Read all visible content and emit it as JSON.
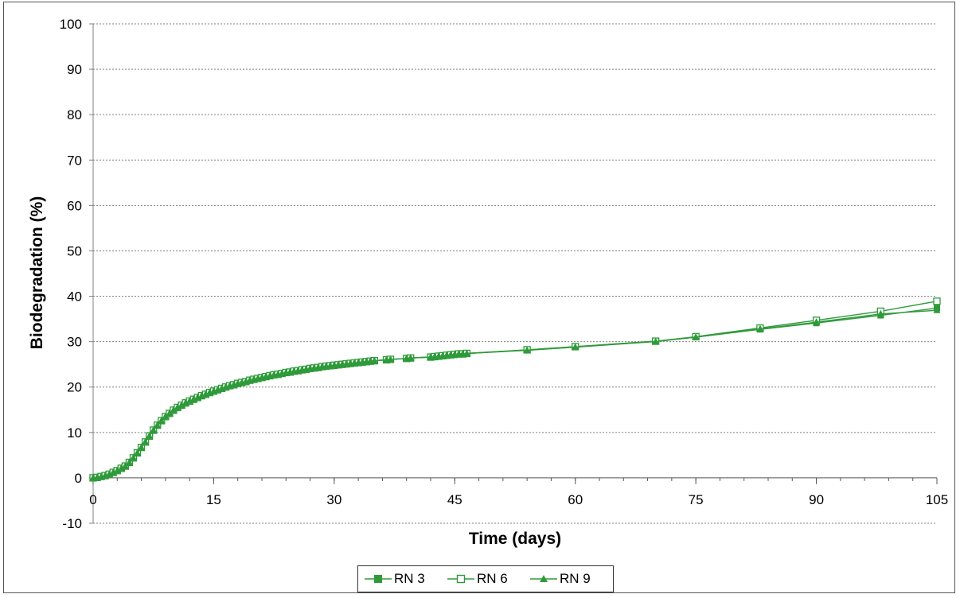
{
  "chart_data": {
    "type": "line",
    "xlabel": "Time (days)",
    "ylabel": "Biodegradation  (%)",
    "xlim": [
      0,
      105
    ],
    "ylim": [
      -10,
      100
    ],
    "x_ticks": [
      0,
      15,
      30,
      45,
      60,
      75,
      90,
      105
    ],
    "y_ticks": [
      -10,
      0,
      10,
      20,
      30,
      40,
      50,
      60,
      70,
      80,
      90,
      100
    ],
    "grid": "horizontal dashed",
    "legend_position": "bottom",
    "colors": {
      "series": "#2e9a3a",
      "grid": "#808080",
      "frame": "#555555"
    },
    "x": [
      0,
      0.5,
      1,
      1.5,
      2,
      2.5,
      3,
      3.5,
      4,
      4.5,
      5,
      5.5,
      6,
      6.5,
      7,
      7.5,
      8,
      8.5,
      9,
      9.5,
      10,
      10.5,
      11,
      11.5,
      12,
      12.5,
      13,
      13.5,
      14,
      14.5,
      15,
      15.5,
      16,
      16.5,
      17,
      17.5,
      18,
      18.5,
      19,
      19.5,
      20,
      20.5,
      21,
      21.5,
      22,
      22.5,
      23,
      23.5,
      24,
      24.5,
      25,
      25.5,
      26,
      26.5,
      27,
      27.5,
      28,
      28.5,
      29,
      29.5,
      30,
      30.5,
      31,
      31.5,
      32,
      32.5,
      33,
      33.5,
      34,
      34.5,
      35,
      36.5,
      37,
      39,
      39.5,
      42,
      42.5,
      43,
      43.5,
      44,
      44.5,
      45,
      45.5,
      46,
      46.5,
      54,
      60,
      70,
      75,
      83,
      90,
      98,
      105
    ],
    "series": [
      {
        "name": "RN 3",
        "marker": "filled-square",
        "values": [
          0,
          0.1,
          0.3,
          0.5,
          0.8,
          1.2,
          1.6,
          2.1,
          2.6,
          3.4,
          4.4,
          5.5,
          6.7,
          7.9,
          9.2,
          10.5,
          11.6,
          12.6,
          13.5,
          14.2,
          14.9,
          15.5,
          16,
          16.5,
          16.9,
          17.3,
          17.7,
          18.1,
          18.4,
          18.8,
          19.1,
          19.4,
          19.7,
          20,
          20.3,
          20.5,
          20.8,
          21,
          21.2,
          21.5,
          21.7,
          21.9,
          22.1,
          22.3,
          22.5,
          22.7,
          22.8,
          23,
          23.2,
          23.3,
          23.5,
          23.6,
          23.8,
          23.9,
          24.1,
          24.2,
          24.3,
          24.5,
          24.6,
          24.7,
          24.8,
          24.9,
          25,
          25.1,
          25.2,
          25.3,
          25.4,
          25.5,
          25.6,
          25.7,
          25.8,
          26,
          26.1,
          26.3,
          26.4,
          26.6,
          26.7,
          26.8,
          26.9,
          27,
          27.1,
          27.2,
          27.3,
          27.3,
          27.4,
          28.2,
          28.9,
          30.1,
          31,
          32.7,
          34.1,
          35.8,
          37.4
        ]
      },
      {
        "name": "RN 6",
        "marker": "open-square",
        "values": [
          0,
          0.1,
          0.3,
          0.5,
          0.8,
          1.2,
          1.6,
          2.1,
          2.6,
          3.4,
          4.4,
          5.5,
          6.7,
          7.9,
          9.2,
          10.5,
          11.6,
          12.6,
          13.5,
          14.2,
          14.9,
          15.5,
          16,
          16.5,
          16.9,
          17.3,
          17.7,
          18.1,
          18.4,
          18.8,
          19.1,
          19.4,
          19.7,
          20,
          20.3,
          20.5,
          20.8,
          21,
          21.2,
          21.5,
          21.7,
          21.9,
          22.1,
          22.3,
          22.5,
          22.7,
          22.8,
          23,
          23.2,
          23.3,
          23.5,
          23.6,
          23.8,
          23.9,
          24.1,
          24.2,
          24.3,
          24.5,
          24.6,
          24.7,
          24.8,
          24.9,
          25,
          25.1,
          25.2,
          25.3,
          25.4,
          25.5,
          25.6,
          25.7,
          25.8,
          26,
          26.1,
          26.3,
          26.4,
          26.6,
          26.7,
          26.8,
          26.9,
          27,
          27.1,
          27.2,
          27.3,
          27.3,
          27.4,
          28.2,
          28.9,
          30.1,
          31.1,
          33,
          34.7,
          36.7,
          38.9
        ]
      },
      {
        "name": "RN 9",
        "marker": "filled-triangle",
        "values": [
          0,
          0.1,
          0.3,
          0.5,
          0.8,
          1.2,
          1.6,
          2.1,
          2.6,
          3.4,
          4.4,
          5.5,
          6.7,
          7.9,
          9.2,
          10.5,
          11.6,
          12.6,
          13.5,
          14.2,
          14.9,
          15.5,
          16,
          16.5,
          16.9,
          17.3,
          17.7,
          18.1,
          18.4,
          18.8,
          19.1,
          19.4,
          19.7,
          20,
          20.3,
          20.5,
          20.8,
          21,
          21.2,
          21.5,
          21.7,
          21.9,
          22.1,
          22.3,
          22.5,
          22.7,
          22.8,
          23,
          23.2,
          23.3,
          23.5,
          23.6,
          23.8,
          23.9,
          24.1,
          24.2,
          24.3,
          24.5,
          24.6,
          24.7,
          24.8,
          24.9,
          25,
          25.1,
          25.2,
          25.3,
          25.4,
          25.5,
          25.6,
          25.7,
          25.8,
          26,
          26.1,
          26.3,
          26.4,
          26.6,
          26.7,
          26.8,
          26.9,
          27,
          27.1,
          27.2,
          27.3,
          27.3,
          27.4,
          28.1,
          28.8,
          30,
          31,
          32.8,
          34.3,
          36.1,
          36.9
        ]
      }
    ]
  }
}
